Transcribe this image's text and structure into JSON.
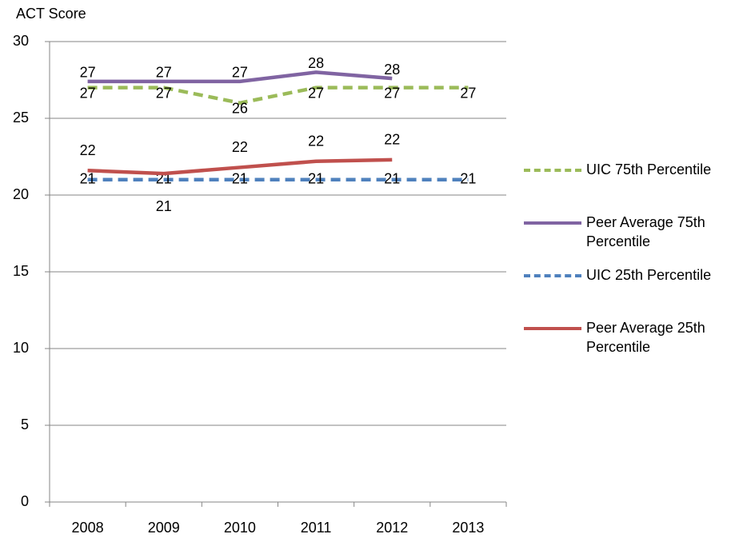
{
  "chart_data": {
    "type": "line",
    "y_label": "ACT Score",
    "categories": [
      "2008",
      "2009",
      "2010",
      "2011",
      "2012",
      "2013"
    ],
    "ylim": [
      0,
      30
    ],
    "yticks": [
      0,
      5,
      10,
      15,
      20,
      25,
      30
    ],
    "grid": true,
    "series": [
      {
        "name": "UIC 75th Percentile",
        "color": "#9bbb59",
        "dashed": true,
        "values": [
          27,
          27,
          26,
          27,
          27,
          27
        ]
      },
      {
        "name": "Peer Average 75th Percentile",
        "color": "#8064a2",
        "dashed": false,
        "values": [
          27.4,
          27.4,
          27.4,
          28.0,
          27.6,
          null
        ],
        "value_labels": [
          "27",
          "27",
          "27",
          "28",
          "28",
          null
        ]
      },
      {
        "name": "UIC 25th Percentile",
        "color": "#4f81bd",
        "dashed": true,
        "values": [
          21,
          21,
          21,
          21,
          21,
          21
        ]
      },
      {
        "name": "Peer Average 25th Percentile",
        "color": "#c0504d",
        "dashed": false,
        "values": [
          21.6,
          21.4,
          21.8,
          22.2,
          22.3,
          null
        ],
        "value_labels": [
          "22",
          "21",
          "22",
          "22",
          "22",
          null
        ]
      }
    ]
  }
}
